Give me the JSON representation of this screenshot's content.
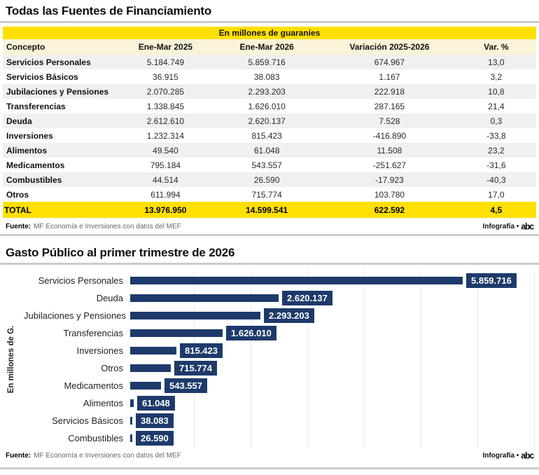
{
  "page": {
    "section1_title": "Todas las Fuentes de Financiamiento",
    "section2_title": "Gasto Público al primer trimestre de 2026",
    "source_label": "Fuente:",
    "source_text": "MF Economía e Inversiones con datos del MEF",
    "credit_label": "Infografía •",
    "logo_text": "abc"
  },
  "chart_data": [
    {
      "type": "table",
      "title_banner": "En millones de guaraníes",
      "columns": [
        "Concepto",
        "Ene-Mar 2025",
        "Ene-Mar 2026",
        "Variación 2025-2026",
        "Var. %"
      ],
      "rows": [
        [
          "Servicios Personales",
          "5.184.749",
          "5.859.716",
          "674.967",
          "13,0"
        ],
        [
          "Servicios Básicos",
          "36.915",
          "38.083",
          "1.167",
          "3,2"
        ],
        [
          "Jubilaciones y Pensiones",
          "2.070.285",
          "2.293.203",
          "222.918",
          "10,8"
        ],
        [
          "Transferencias",
          "1.338.845",
          "1.626.010",
          "287.165",
          "21,4"
        ],
        [
          "Deuda",
          "2.612.610",
          "2.620.137",
          "7.528",
          "0,3"
        ],
        [
          "Inversiones",
          "1.232.314",
          "815.423",
          "-416.890",
          "-33,8"
        ],
        [
          "Alimentos",
          "49.540",
          "61.048",
          "11.508",
          "23,2"
        ],
        [
          "Medicamentos",
          "795.184",
          "543.557",
          "-251.627",
          "-31,6"
        ],
        [
          "Combustibles",
          "44.514",
          "26.590",
          "-17.923",
          "-40,3"
        ],
        [
          "Otros",
          "611.994",
          "715.774",
          "103.780",
          "17,0"
        ]
      ],
      "total_row": [
        "TOTAL",
        "13.976.950",
        "14.599.541",
        "622.592",
        "4,5"
      ]
    },
    {
      "type": "bar",
      "orientation": "horizontal",
      "title": "Gasto Público al primer trimestre de 2026",
      "ylabel": "En millones de G.",
      "xlabel": "",
      "categories": [
        "Servicios Personales",
        "Deuda",
        "Jubilaciones y Pensiones",
        "Transferencias",
        "Inversiones",
        "Otros",
        "Medicamentos",
        "Alimentos",
        "Servicios Básicos",
        "Combustibles"
      ],
      "values": [
        5859716,
        2620137,
        2293203,
        1626010,
        815423,
        715774,
        543557,
        61048,
        38083,
        26590
      ],
      "value_labels": [
        "5.859.716",
        "2.620.137",
        "2.293.203",
        "1.626.010",
        "815.423",
        "715.774",
        "543.557",
        "61.048",
        "38.083",
        "26.590"
      ],
      "xlim": [
        0,
        7000000
      ],
      "grid": true,
      "legend": false,
      "value_label_style": "boxed-white-on-navy"
    }
  ],
  "colors": {
    "accent-yellow": "#ffe000",
    "header-cream": "#faf3d8",
    "navy": "#1e3a6b",
    "stripe": "#f0f0f0",
    "rule-gray": "#cbcbcb",
    "grid-gray": "#e9e9ef",
    "text-dark": "#111111",
    "text-gray": "#666666"
  }
}
